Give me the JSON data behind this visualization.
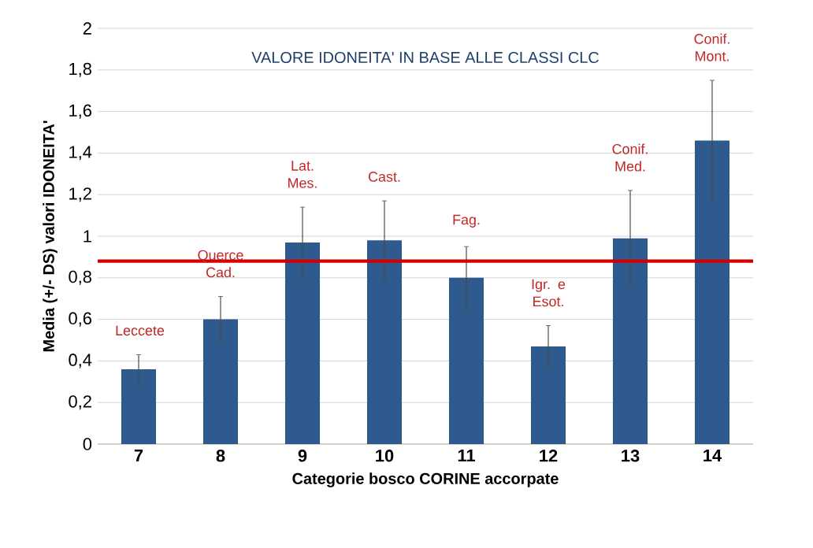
{
  "chart_data": {
    "type": "bar",
    "title": "VALORE IDONEITA' IN BASE ALLE CLASSI CLC",
    "xlabel": "Categorie bosco CORINE accorpate",
    "ylabel": "Media (+/- DS) valori IDONEITA'",
    "categories": [
      "7",
      "8",
      "9",
      "10",
      "11",
      "12",
      "13",
      "14"
    ],
    "values": [
      0.36,
      0.6,
      0.97,
      0.98,
      0.8,
      0.47,
      0.99,
      1.46
    ],
    "errors": [
      0.07,
      0.11,
      0.17,
      0.19,
      0.15,
      0.1,
      0.23,
      0.29
    ],
    "color": "#2f5a8e",
    "ylim": [
      0,
      2
    ],
    "yticks": [
      0,
      {
        "value": 0.2,
        "label": "0,2"
      },
      {
        "value": 0.4,
        "label": "0,4"
      },
      {
        "value": 0.6,
        "label": "0,6"
      },
      {
        "value": 0.8,
        "label": "0,8"
      },
      1,
      {
        "value": 1.2,
        "label": "1,2"
      },
      {
        "value": 1.4,
        "label": "1,4"
      },
      {
        "value": 1.6,
        "label": "1,6"
      },
      {
        "value": 1.8,
        "label": "1,8"
      },
      2
    ],
    "grid": "y",
    "ref_lines": [
      {
        "axis": "y",
        "value": 0.88,
        "color": "#d40000"
      }
    ],
    "annotations": [
      "Leccete",
      "Querce Cad.",
      "Lat. Mes.",
      "Cast.",
      "Fag.",
      "Igr. e Esot.",
      "Conif. Med.",
      "Conif. Mont."
    ]
  }
}
